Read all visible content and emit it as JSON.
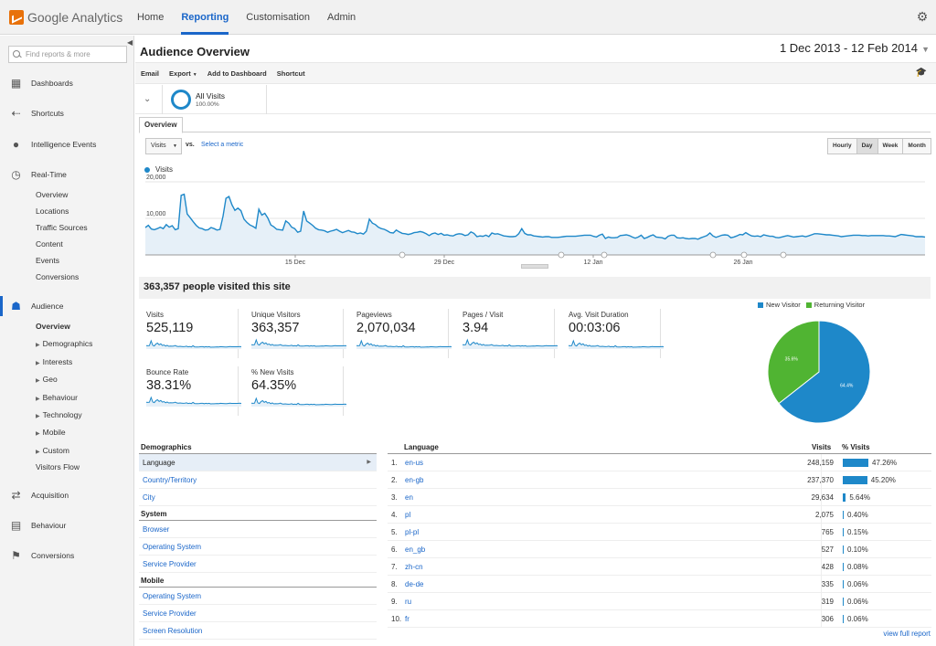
{
  "app": {
    "name": "Google Analytics",
    "nav": [
      {
        "label": "Home",
        "active": false
      },
      {
        "label": "Reporting",
        "active": true
      },
      {
        "label": "Customisation",
        "active": false
      },
      {
        "label": "Admin",
        "active": false
      }
    ],
    "accent": "#1a66c9"
  },
  "sidebar": {
    "search_placeholder": "Find reports & more",
    "sections": [
      {
        "label": "Dashboards",
        "icon": "grid-icon"
      },
      {
        "label": "Shortcuts",
        "icon": "arrows-icon"
      },
      {
        "label": "Intelligence Events",
        "icon": "bulb-icon"
      },
      {
        "label": "Real-Time",
        "icon": "clock-icon"
      },
      {
        "label": "Audience",
        "icon": "people-icon",
        "active": true
      },
      {
        "label": "Acquisition",
        "icon": "acquisition-icon"
      },
      {
        "label": "Behaviour",
        "icon": "behaviour-icon"
      },
      {
        "label": "Conversions",
        "icon": "flag-icon"
      }
    ],
    "realtime_items": [
      "Overview",
      "Locations",
      "Traffic Sources",
      "Content",
      "Events",
      "Conversions"
    ],
    "audience_items": [
      "Overview",
      "Demographics",
      "Interests",
      "Geo",
      "Behaviour",
      "Technology",
      "Mobile",
      "Custom",
      "Visitors Flow"
    ]
  },
  "header": {
    "title": "Audience Overview",
    "date_range": "1 Dec 2013 - 12 Feb 2014"
  },
  "toolbar": {
    "email": "Email",
    "export": "Export",
    "add_to_dashboard": "Add to Dashboard",
    "shortcut": "Shortcut"
  },
  "segment": {
    "name": "All Visits",
    "percent": "100.00%"
  },
  "tabs": {
    "overview": "Overview"
  },
  "controls": {
    "metric": "Visits",
    "vs": "vs.",
    "select_metric": "Select a metric",
    "granularity": [
      "Hourly",
      "Day",
      "Week",
      "Month"
    ],
    "selected_granularity": "Day"
  },
  "chart_data": {
    "type": "area",
    "series": [
      {
        "name": "Visits",
        "color": "#1e88c9",
        "values": [
          7500,
          8100,
          7100,
          6900,
          7200,
          7600,
          7200,
          8300,
          7600,
          8000,
          6900,
          7200,
          16300,
          16600,
          11200,
          10200,
          9100,
          8100,
          7400,
          7200,
          6800,
          6900,
          7500,
          7200,
          6800,
          7000,
          10600,
          15500,
          16000,
          13700,
          12200,
          12800,
          12100,
          9800,
          8900,
          8200,
          7800,
          7300,
          12500,
          10900,
          11400,
          10100,
          8200,
          7700,
          7000,
          6900,
          6800,
          9300,
          8700,
          7600,
          7200,
          6200,
          6500,
          12000,
          9300,
          8700,
          8100,
          7300,
          6900,
          6800,
          6600,
          6200,
          6500,
          6700,
          7000,
          6500,
          6100,
          6400,
          6700,
          6300,
          6200,
          5800,
          6000,
          5700,
          6500,
          9800,
          8700,
          8300,
          7600,
          7200,
          7000,
          6600,
          6100,
          6000,
          6800,
          6300,
          5900,
          5800,
          5600,
          5800,
          6100,
          6200,
          6400,
          6200,
          5800,
          5300,
          5800,
          6000,
          5600,
          5900,
          5400,
          5500,
          5300,
          5200,
          5600,
          5800,
          5700,
          5300,
          5500,
          6300,
          5900,
          5000,
          5200,
          5100,
          5400,
          5000,
          6000,
          5700,
          5800,
          5500,
          5200,
          5100,
          5000,
          5000,
          5100,
          5800,
          7200,
          5900,
          5500,
          5500,
          5200,
          5100,
          5000,
          4900,
          5000,
          5000,
          4800,
          4800,
          4800,
          4900,
          5000,
          5100,
          5100,
          5100,
          5100,
          5200,
          5300,
          5400,
          5400,
          5400,
          5100,
          4900,
          5400,
          5700,
          4500,
          4900,
          4700,
          4700,
          4800,
          5300,
          5400,
          5500,
          5300,
          4900,
          4600,
          4900,
          5400,
          4500,
          4800,
          5200,
          5500,
          4900,
          4800,
          4700,
          4400,
          5100,
          5400,
          5400,
          4700,
          4600,
          4700,
          4500,
          4400,
          4500,
          4500,
          4300,
          4700,
          5000,
          5300,
          6000,
          5200,
          4800,
          5100,
          5400,
          5500,
          5400,
          4700,
          4900,
          5200,
          5600,
          5500,
          6100,
          5600,
          5200,
          5100,
          5200,
          5000,
          5500,
          5300,
          5100,
          5100,
          4800,
          4700,
          4900,
          5100,
          5300,
          5100,
          4900,
          5000,
          5100,
          5200,
          5000,
          5200,
          5500,
          5800,
          5800,
          5700,
          5600,
          5500,
          5500,
          5400,
          5300,
          5200,
          5000,
          5100,
          5200,
          5300,
          5400,
          5400,
          5400,
          5300,
          5300,
          5200,
          5300,
          5300,
          5300,
          5300,
          5300,
          5200,
          5200,
          5100,
          5000,
          5300,
          5600,
          5500,
          5400,
          5300,
          5200,
          5000,
          5000,
          5000,
          4900
        ]
      }
    ],
    "y_ticks": [
      "20,000",
      "10,000"
    ],
    "x_ticks": [
      "15 Dec",
      "29 Dec",
      "12 Jan",
      "26 Jan"
    ],
    "ylim": [
      0,
      22000
    ]
  },
  "summary": {
    "headline": "363,357 people visited this site"
  },
  "kpis": [
    {
      "label": "Visits",
      "value": "525,119"
    },
    {
      "label": "Unique Visitors",
      "value": "363,357"
    },
    {
      "label": "Pageviews",
      "value": "2,070,034"
    },
    {
      "label": "Pages / Visit",
      "value": "3.94"
    },
    {
      "label": "Avg. Visit Duration",
      "value": "00:03:06"
    },
    {
      "label": "Bounce Rate",
      "value": "38.31%"
    },
    {
      "label": "% New Visits",
      "value": "64.35%"
    }
  ],
  "pie": {
    "legend": [
      {
        "label": "New Visitor",
        "color": "#1e88c9"
      },
      {
        "label": "Returning Visitor",
        "color": "#50b432"
      }
    ],
    "slices": [
      {
        "label": "64.4%",
        "value": 64.4,
        "color": "#1e88c9"
      },
      {
        "label": "35.6%",
        "value": 35.6,
        "color": "#50b432"
      }
    ]
  },
  "demographics": {
    "groups": [
      {
        "title": "Demographics",
        "items": [
          "Language",
          "Country/Territory",
          "City"
        ]
      },
      {
        "title": "System",
        "items": [
          "Browser",
          "Operating System",
          "Service Provider"
        ]
      },
      {
        "title": "Mobile",
        "items": [
          "Operating System",
          "Service Provider",
          "Screen Resolution"
        ]
      }
    ],
    "selected": "Language"
  },
  "language_table": {
    "headers": {
      "language": "Language",
      "visits": "Visits",
      "pct_visits": "% Visits"
    },
    "rows": [
      {
        "idx": "1.",
        "lang": "en-us",
        "visits": "248,159",
        "pct": "47.26%",
        "share": 47.26
      },
      {
        "idx": "2.",
        "lang": "en-gb",
        "visits": "237,370",
        "pct": "45.20%",
        "share": 45.2
      },
      {
        "idx": "3.",
        "lang": "en",
        "visits": "29,634",
        "pct": "5.64%",
        "share": 5.64
      },
      {
        "idx": "4.",
        "lang": "pl",
        "visits": "2,075",
        "pct": "0.40%",
        "share": 0.4
      },
      {
        "idx": "5.",
        "lang": "pl-pl",
        "visits": "765",
        "pct": "0.15%",
        "share": 0.15
      },
      {
        "idx": "6.",
        "lang": "en_gb",
        "visits": "527",
        "pct": "0.10%",
        "share": 0.1
      },
      {
        "idx": "7.",
        "lang": "zh-cn",
        "visits": "428",
        "pct": "0.08%",
        "share": 0.08
      },
      {
        "idx": "8.",
        "lang": "de-de",
        "visits": "335",
        "pct": "0.06%",
        "share": 0.06
      },
      {
        "idx": "9.",
        "lang": "ru",
        "visits": "319",
        "pct": "0.06%",
        "share": 0.06
      },
      {
        "idx": "10.",
        "lang": "fr",
        "visits": "306",
        "pct": "0.06%",
        "share": 0.06
      }
    ],
    "view_full": "view full report"
  }
}
